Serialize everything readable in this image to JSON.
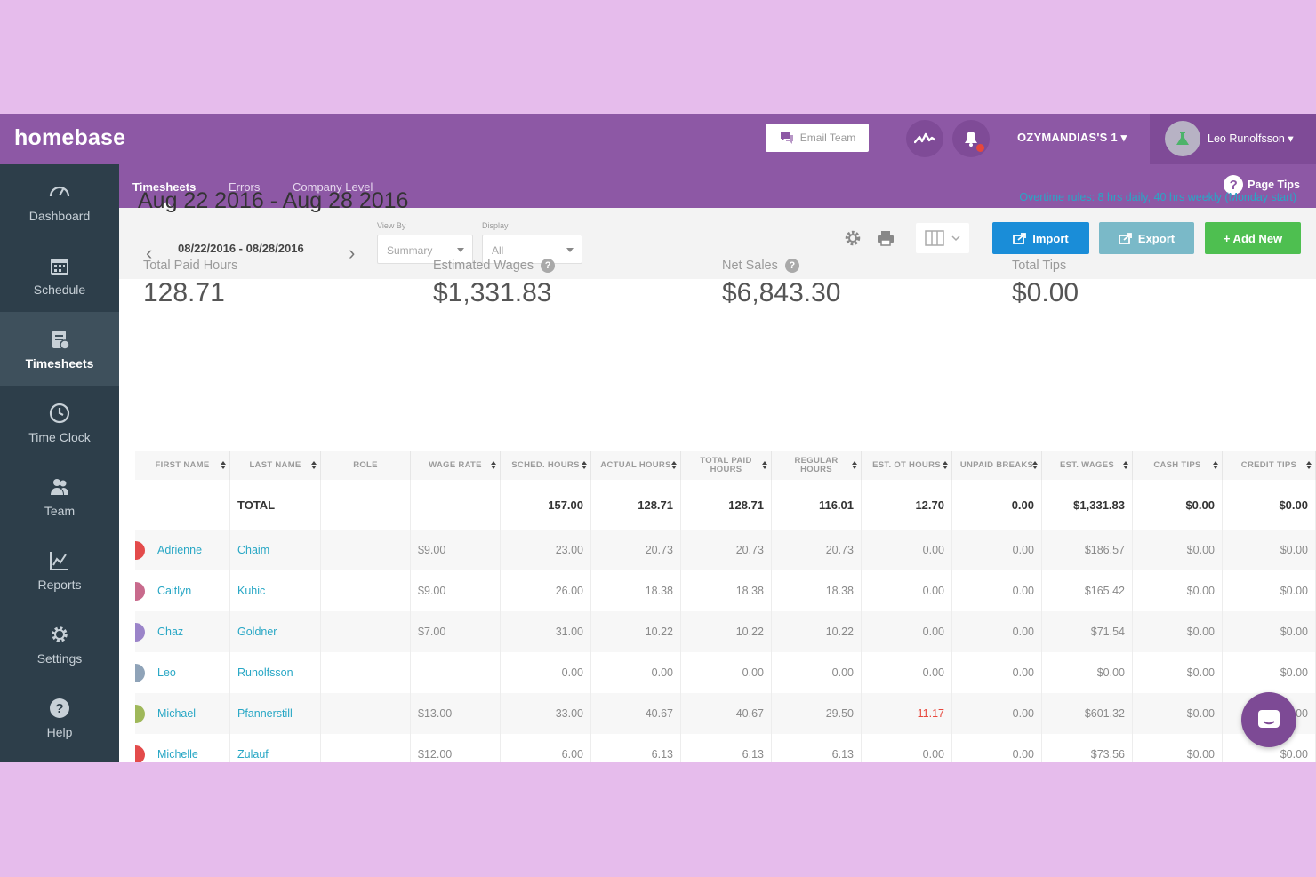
{
  "app": {
    "logo": "homebase",
    "email_team_label": "Email Team",
    "location": "OZYMANDIAS'S 1 ▾",
    "user_name": "Leo Runolfsson ▾"
  },
  "sidebar": {
    "items": [
      {
        "label": "Dashboard",
        "icon": "dashboard-icon"
      },
      {
        "label": "Schedule",
        "icon": "calendar-icon"
      },
      {
        "label": "Timesheets",
        "icon": "timesheets-icon",
        "active": true
      },
      {
        "label": "Time Clock",
        "icon": "clock-icon"
      },
      {
        "label": "Team",
        "icon": "team-icon"
      },
      {
        "label": "Reports",
        "icon": "reports-icon"
      },
      {
        "label": "Settings",
        "icon": "gear-icon"
      },
      {
        "label": "Help",
        "icon": "help-icon"
      }
    ]
  },
  "tabs": {
    "timesheets": "Timesheets",
    "errors": "Errors",
    "company_level": "Company Level",
    "page_tips": "Page Tips"
  },
  "toolbar": {
    "date_range": "08/22/2016 - 08/28/2016",
    "view_by_label": "View By",
    "view_by_value": "Summary",
    "display_label": "Display",
    "display_value": "All",
    "import_label": "Import",
    "export_label": "Export",
    "add_new_label": "+ Add New"
  },
  "summary": {
    "title": "Aug 22 2016 - Aug 28 2016",
    "overtime_rules": "Overtime rules: 8 hrs daily, 40 hrs weekly (Monday start)",
    "stats": [
      {
        "label": "Total Paid Hours",
        "value": "128.71",
        "help": false
      },
      {
        "label": "Estimated Wages",
        "value": "$1,331.83",
        "help": true
      },
      {
        "label": "Net Sales",
        "value": "$6,843.30",
        "help": true
      },
      {
        "label": "Total Tips",
        "value": "$0.00",
        "help": false
      }
    ]
  },
  "table": {
    "columns": [
      "FIRST NAME",
      "LAST NAME",
      "ROLE",
      "WAGE RATE",
      "SCHED. HOURS",
      "ACTUAL HOURS",
      "TOTAL PAID HOURS",
      "REGULAR HOURS",
      "EST. OT HOURS",
      "UNPAID BREAKS",
      "EST. WAGES",
      "CASH TIPS",
      "CREDIT TIPS"
    ],
    "total": {
      "label": "TOTAL",
      "sched": "157.00",
      "actual": "128.71",
      "paid": "128.71",
      "regular": "116.01",
      "ot": "12.70",
      "breaks": "0.00",
      "wages": "$1,331.83",
      "cash": "$0.00",
      "credit": "$0.00"
    },
    "rows": [
      {
        "first": "Adrienne",
        "last": "Chaim",
        "role": "",
        "rate": "$9.00",
        "sched": "23.00",
        "actual": "20.73",
        "paid": "20.73",
        "regular": "20.73",
        "ot": "0.00",
        "breaks": "0.00",
        "wages": "$186.57",
        "cash": "$0.00",
        "credit": "$0.00",
        "avatar_color": "#e34b4b"
      },
      {
        "first": "Caitlyn",
        "last": "Kuhic",
        "role": "",
        "rate": "$9.00",
        "sched": "26.00",
        "actual": "18.38",
        "paid": "18.38",
        "regular": "18.38",
        "ot": "0.00",
        "breaks": "0.00",
        "wages": "$165.42",
        "cash": "$0.00",
        "credit": "$0.00",
        "avatar_color": "#c86a8c"
      },
      {
        "first": "Chaz",
        "last": "Goldner",
        "role": "",
        "rate": "$7.00",
        "sched": "31.00",
        "actual": "10.22",
        "paid": "10.22",
        "regular": "10.22",
        "ot": "0.00",
        "breaks": "0.00",
        "wages": "$71.54",
        "cash": "$0.00",
        "credit": "$0.00",
        "avatar_color": "#9b84c9"
      },
      {
        "first": "Leo",
        "last": "Runolfsson",
        "role": "",
        "rate": "",
        "sched": "0.00",
        "actual": "0.00",
        "paid": "0.00",
        "regular": "0.00",
        "ot": "0.00",
        "breaks": "0.00",
        "wages": "$0.00",
        "cash": "$0.00",
        "credit": "$0.00",
        "avatar_color": "#8fa3b8"
      },
      {
        "first": "Michael",
        "last": "Pfannerstill",
        "role": "",
        "rate": "$13.00",
        "sched": "33.00",
        "actual": "40.67",
        "paid": "40.67",
        "regular": "29.50",
        "ot": "11.17",
        "breaks": "0.00",
        "wages": "$601.32",
        "cash": "$0.00",
        "credit": "$0.00",
        "avatar_color": "#9fb85a"
      },
      {
        "first": "Michelle",
        "last": "Zulauf",
        "role": "",
        "rate": "$12.00",
        "sched": "6.00",
        "actual": "6.13",
        "paid": "6.13",
        "regular": "6.13",
        "ot": "0.00",
        "breaks": "0.00",
        "wages": "$73.56",
        "cash": "$0.00",
        "credit": "$0.00",
        "avatar_color": "#e34b4b"
      }
    ]
  }
}
